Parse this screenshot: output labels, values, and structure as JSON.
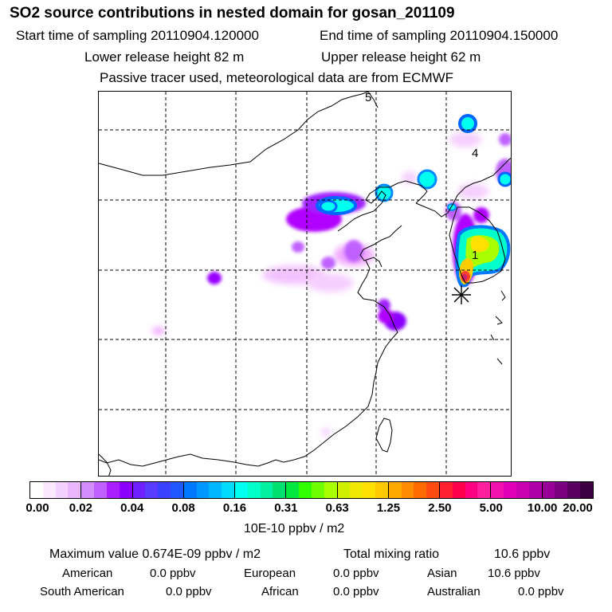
{
  "header": {
    "title": "SO2 source contributions in nested domain for gosan_201109",
    "start_label": "Start time of sampling 20110904.120000",
    "end_label": "End time of sampling 20110904.150000",
    "lower_label": "Lower release height   82 m",
    "upper_label": "Upper release height   62 m",
    "tracer_note": "Passive tracer used, meteorological data are from ECMWF"
  },
  "map": {
    "region_markers": [
      "1",
      "4",
      "5"
    ],
    "colors": {
      "plume_violet": "#b000ff",
      "plume_pink": "#ee99ff",
      "plume_cyan": "#00ffee",
      "plume_blue": "#0099ff",
      "plume_yellow": "#ffee00",
      "plume_red": "#ff2020"
    }
  },
  "colorbar": {
    "tick_labels": [
      "0.00",
      "0.02",
      "0.04",
      "0.08",
      "0.16",
      "0.31",
      "0.63",
      "1.25",
      "2.50",
      "5.00",
      "10.00",
      "20.00"
    ],
    "colors": [
      "#ffffff",
      "#fbe8ff",
      "#f4d0ff",
      "#eab6ff",
      "#d58cff",
      "#c060ff",
      "#a820ff",
      "#8c00ff",
      "#6f20ff",
      "#5a3cff",
      "#3c40ff",
      "#1f58ff",
      "#0078ff",
      "#0098ff",
      "#00b8ff",
      "#00dcff",
      "#00fff0",
      "#00ffc8",
      "#00f0a0",
      "#00e070",
      "#00e840",
      "#30ff00",
      "#70ff00",
      "#a8ff00",
      "#d0f000",
      "#f0e800",
      "#ffe000",
      "#ffc800",
      "#ffaa00",
      "#ff8c00",
      "#ff6a00",
      "#ff4a10",
      "#ff2030",
      "#ff0050",
      "#ff0080",
      "#ff20a0",
      "#f010b0",
      "#e000b8",
      "#c800b0",
      "#b000a8",
      "#980098",
      "#7a0080",
      "#5a0060",
      "#3c0040"
    ],
    "unit_label": "10E-10 ppbv / m2"
  },
  "stats": {
    "max_label": "Maximum value  0.674E-09 ppbv / m2",
    "total_label": "Total mixing ratio",
    "total_value": "10.6 ppbv",
    "american_label": "American",
    "american_value": "0.0 ppbv",
    "european_label": "European",
    "european_value": "0.0 ppbv",
    "asian_label": "Asian",
    "asian_value": "10.6 ppbv",
    "south_american_label": "South American",
    "south_american_value": "0.0 ppbv",
    "african_label": "African",
    "african_value": "0.0 ppbv",
    "australian_label": "Australian",
    "australian_value": "0.0 ppbv"
  }
}
